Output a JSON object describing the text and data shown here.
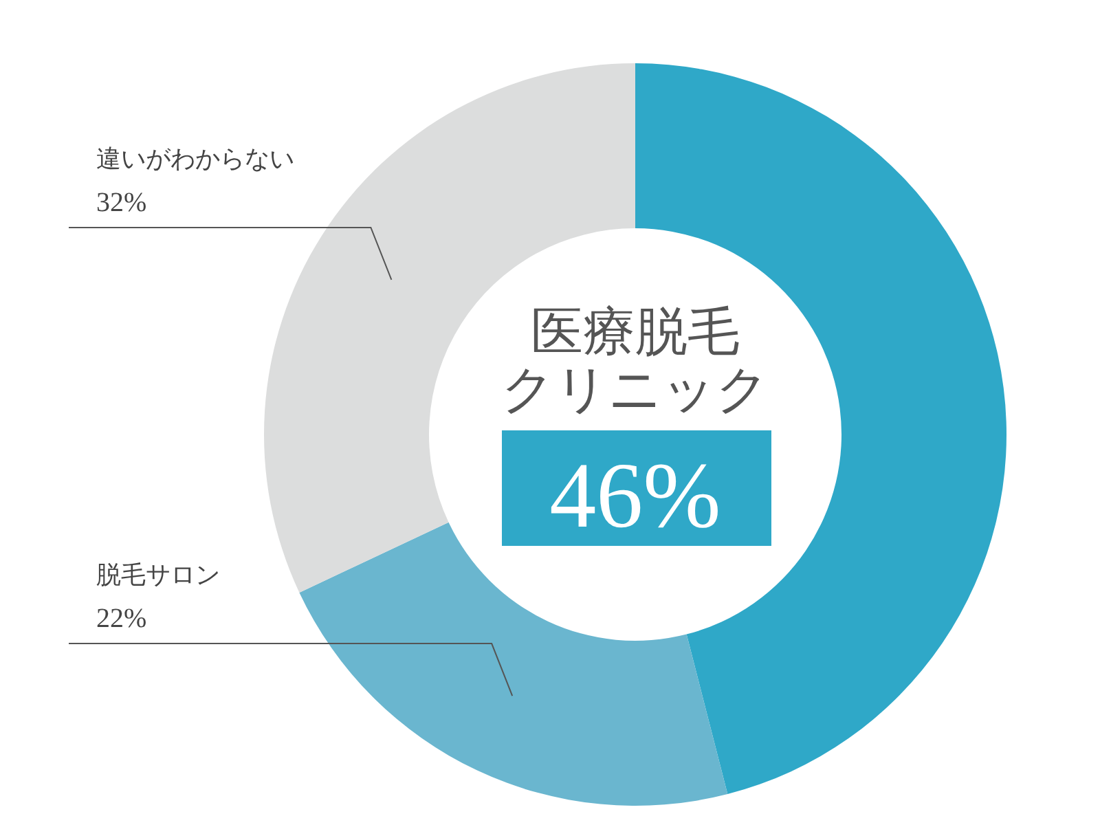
{
  "chart_data": {
    "type": "donut",
    "categories": [
      "医療脱毛クリニック",
      "脱毛サロン",
      "違いがわからない"
    ],
    "values": [
      46,
      22,
      32
    ],
    "colors": [
      "#2fa8c8",
      "#6ab6cf",
      "#dcdddd"
    ],
    "value_labels": [
      "46%",
      "22%",
      "32%"
    ]
  }
}
